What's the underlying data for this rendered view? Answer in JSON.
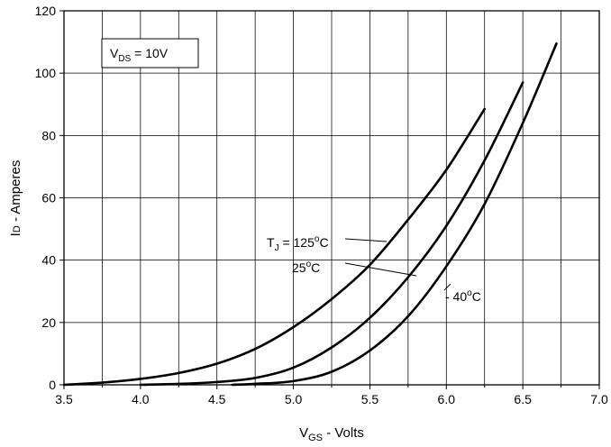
{
  "chart_data": {
    "type": "line",
    "xlabel": {
      "main": "V",
      "sub": "GS",
      "rest": " - Volts"
    },
    "ylabel": {
      "main": "I",
      "sub": "D",
      "rest": " - Amperes"
    },
    "xlim": [
      3.5,
      7.0
    ],
    "ylim": [
      0,
      120
    ],
    "x_ticks": [
      "3.5",
      "4.0",
      "4.5",
      "5.0",
      "5.5",
      "6.0",
      "6.5",
      "7.0"
    ],
    "y_ticks": [
      "0",
      "20",
      "40",
      "60",
      "80",
      "100",
      "120"
    ],
    "grid": true,
    "conditions_box": {
      "main": "V",
      "sub": "DS",
      "rest": " = 10V"
    },
    "series": [
      {
        "name": "TJ = 125°C",
        "label_parts": {
          "main": "T",
          "sub": "J",
          "mid": " = 125",
          "sup": "o",
          "end": "C"
        },
        "points": [
          [
            3.5,
            0
          ],
          [
            3.75,
            0.7
          ],
          [
            4.0,
            1.9
          ],
          [
            4.25,
            3.8
          ],
          [
            4.5,
            6.8
          ],
          [
            4.75,
            11.5
          ],
          [
            5.0,
            18.5
          ],
          [
            5.25,
            27.5
          ],
          [
            5.5,
            38.5
          ],
          [
            5.75,
            53
          ],
          [
            6.0,
            69
          ],
          [
            6.25,
            88.5
          ]
        ]
      },
      {
        "name": "25°C",
        "label_parts": {
          "main": "25",
          "sup": "o",
          "end": "C"
        },
        "points": [
          [
            4.0,
            0
          ],
          [
            4.25,
            0.3
          ],
          [
            4.5,
            0.9
          ],
          [
            4.75,
            2.2
          ],
          [
            5.0,
            5.5
          ],
          [
            5.25,
            12
          ],
          [
            5.5,
            21.5
          ],
          [
            5.75,
            34.5
          ],
          [
            6.0,
            51
          ],
          [
            6.25,
            72
          ],
          [
            6.5,
            97
          ]
        ]
      },
      {
        "name": "- 40°C",
        "label_parts": {
          "main": "- 40",
          "sup": "o",
          "end": "C"
        },
        "points": [
          [
            4.6,
            0
          ],
          [
            4.75,
            0.3
          ],
          [
            5.0,
            1.2
          ],
          [
            5.25,
            4.2
          ],
          [
            5.5,
            11
          ],
          [
            5.75,
            22
          ],
          [
            6.0,
            38
          ],
          [
            6.25,
            58
          ],
          [
            6.5,
            84
          ],
          [
            6.72,
            109.5
          ]
        ]
      }
    ]
  }
}
